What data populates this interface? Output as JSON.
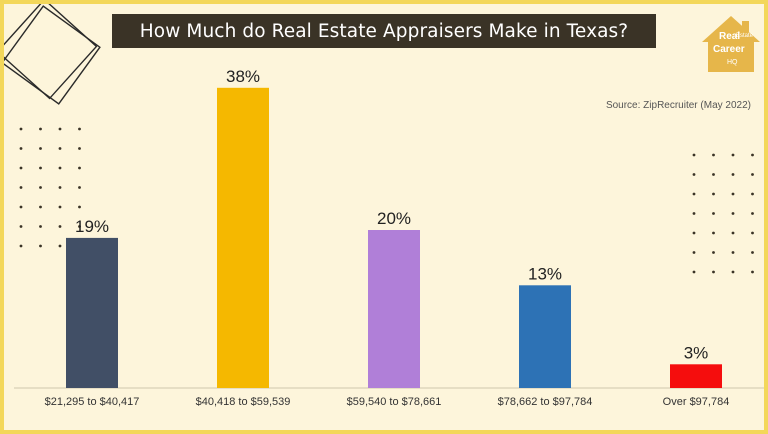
{
  "title": "How Much do Real Estate Appraisers Make in Texas?",
  "source": "Source: ZipRecruiter (May 2022)",
  "logo": {
    "line1": "Real",
    "line2": "Estate",
    "line3": "Career",
    "line4": "HQ",
    "color": "#e6b64a"
  },
  "colors": {
    "background": "#fdf5db",
    "border": "#f3d75a",
    "title_bg": "#3a3326"
  },
  "chart_data": {
    "type": "bar",
    "categories": [
      "$21,295 to $40,417",
      "$40,418 to $59,539",
      "$59,540 to $78,661",
      "$78,662 to $97,784",
      "Over $97,784"
    ],
    "values": [
      19,
      38,
      20,
      13,
      3
    ],
    "data_labels": [
      "19%",
      "38%",
      "20%",
      "13%",
      "3%"
    ],
    "colors": [
      "#414f66",
      "#f5b800",
      "#b07fd8",
      "#2d72b5",
      "#f50d0d"
    ],
    "ylim": [
      0,
      40
    ],
    "grid": false,
    "legend": "none"
  }
}
